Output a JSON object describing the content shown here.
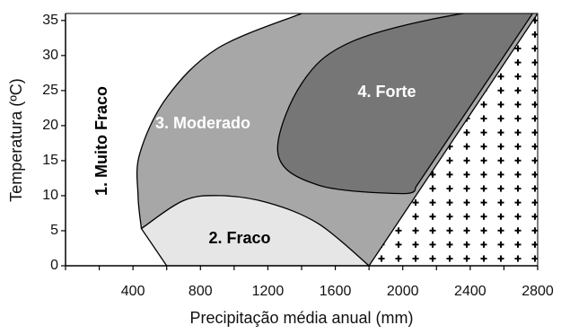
{
  "chart_data": {
    "type": "area",
    "xlabel": "Precipitação média anual (mm)",
    "ylabel": "Temperatura (ºC)",
    "xlim": [
      0,
      2800
    ],
    "ylim": [
      0,
      36
    ],
    "x_ticks": [
      "400",
      "800",
      "1200",
      "1600",
      "2000",
      "2400",
      "2800"
    ],
    "y_ticks": [
      "0",
      "5",
      "10",
      "15",
      "20",
      "25",
      "30",
      "35"
    ],
    "grid": false,
    "legend": "none",
    "regions": [
      {
        "label": "1. Muito Fraco",
        "fill": "#ffffff",
        "text_color": "#000000"
      },
      {
        "label": "2. Fraco",
        "fill": "#e6e6e6",
        "text_color": "#000000"
      },
      {
        "label": "3. Moderado",
        "fill": "#a7a7a7",
        "text_color": "#ffffff"
      },
      {
        "label": "4. Forte",
        "fill": "#767676",
        "text_color": "#ffffff"
      }
    ],
    "arid_zone_marker": "+",
    "boundaries": {
      "moderado_outer": [
        [
          1400,
          36
        ],
        [
          900,
          31
        ],
        [
          600,
          24
        ],
        [
          440,
          16
        ],
        [
          430,
          10
        ],
        [
          450,
          5.3
        ]
      ],
      "fraco_upper": [
        [
          450,
          5.3
        ],
        [
          700,
          9.3
        ],
        [
          920,
          10
        ],
        [
          1200,
          9
        ],
        [
          1500,
          6
        ],
        [
          1800,
          0
        ]
      ],
      "fraco_lower": [
        [
          600,
          0
        ],
        [
          450,
          5.3
        ]
      ],
      "arid_line": [
        [
          1800,
          0
        ],
        [
          2800,
          36
        ]
      ],
      "forte_outer": [
        [
          2770,
          36
        ],
        [
          2360,
          36
        ],
        [
          1700,
          32
        ],
        [
          1400,
          26
        ],
        [
          1260,
          16
        ],
        [
          1500,
          11.5
        ],
        [
          2000,
          10.3
        ],
        [
          2080,
          11.3
        ]
      ]
    }
  }
}
